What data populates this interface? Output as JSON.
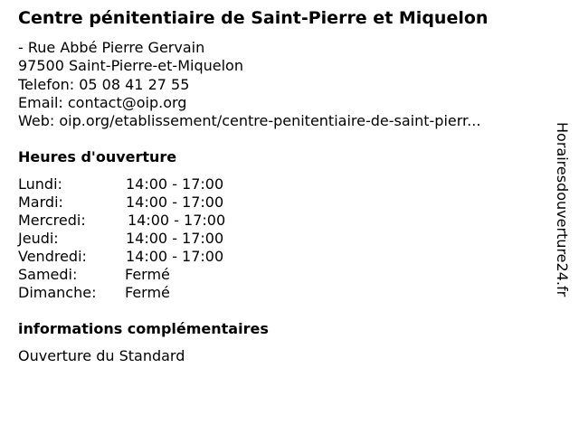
{
  "title": "Centre pénitentiaire de Saint-Pierre et Miquelon",
  "address": {
    "street": "- Rue Abbé Pierre Gervain",
    "city": "97500 Saint-Pierre-et-Miquelon",
    "phone": "Telefon: 05 08 41 27 55",
    "email": "Email: contact@oip.org",
    "web": "Web: oip.org/etablissement/centre-penitentiaire-de-saint-pierr..."
  },
  "hours_heading": "Heures d'ouverture",
  "hours": [
    {
      "day": "Lundi:",
      "time": "14:00 - 17:00"
    },
    {
      "day": "Mardi:",
      "time": "14:00 - 17:00"
    },
    {
      "day": "Mercredi:",
      "time": "14:00 - 17:00"
    },
    {
      "day": "Jeudi:",
      "time": "14:00 - 17:00"
    },
    {
      "day": "Vendredi:",
      "time": "14:00 - 17:00"
    },
    {
      "day": "Samedi:",
      "time": "Fermé"
    },
    {
      "day": "Dimanche:",
      "time": "Fermé"
    }
  ],
  "extra_heading": "informations complémentaires",
  "extra_text": "Ouverture du Standard",
  "watermark": "Horairesdouverture24.fr"
}
